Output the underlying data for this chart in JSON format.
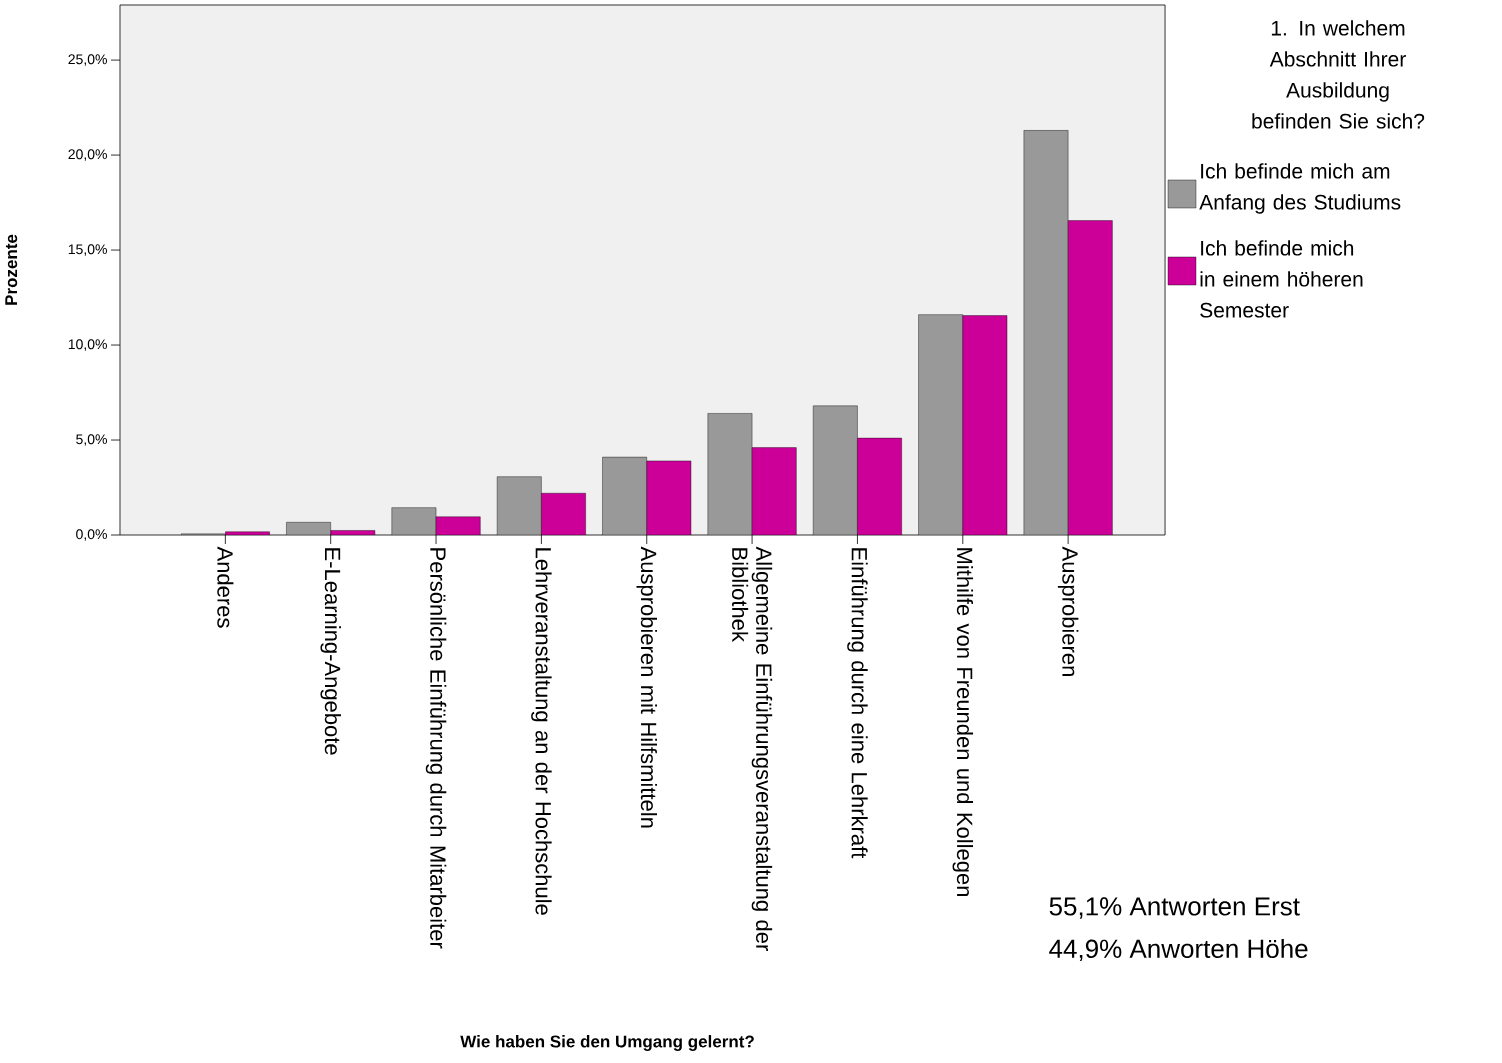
{
  "chart_data": {
    "type": "bar",
    "xlabel": "Wie haben Sie den Umgang gelernt?",
    "ylabel": "Prozente",
    "legend_title": "1. In welchem Abschnitt Ihrer Ausbildung befinden Sie sich?",
    "legend": "right",
    "categories": [
      "Anderes",
      "E-Learning-Angebote",
      "Persönliche Einführung durch Mitarbeiter",
      "Lehrveranstaltung an der Hochschule",
      "Ausprobieren mit Hilfsmitteln",
      "Allgemeine Einführungsveranstaltung der Bibliothek",
      "Einführung durch eine Lehrkraft",
      "Mithilfe von Freunden und Kollegen",
      "Ausprobieren"
    ],
    "series": [
      {
        "name": "Ich befinde mich am Anfang des Studiums",
        "color": "#999999",
        "values": [
          0.06,
          0.67,
          1.44,
          3.07,
          4.1,
          6.4,
          6.8,
          11.6,
          21.3
        ]
      },
      {
        "name": "Ich befinde mich in einem höheren Semester",
        "color": "#cc0099",
        "values": [
          0.17,
          0.24,
          0.96,
          2.2,
          3.9,
          4.6,
          5.1,
          11.55,
          16.55
        ]
      }
    ],
    "ylim": [
      0,
      27.9
    ],
    "yticks": [
      {
        "value": 0,
        "label": "0,0%"
      },
      {
        "value": 5,
        "label": "5,0%"
      },
      {
        "value": 10,
        "label": "10,0%"
      },
      {
        "value": 15,
        "label": "15,0%"
      },
      {
        "value": 20,
        "label": "20,0%"
      },
      {
        "value": 25,
        "label": "25,0%"
      }
    ],
    "annotations": [
      "55,1% Antworten Erst",
      "44,9% Anworten Höhe"
    ]
  }
}
